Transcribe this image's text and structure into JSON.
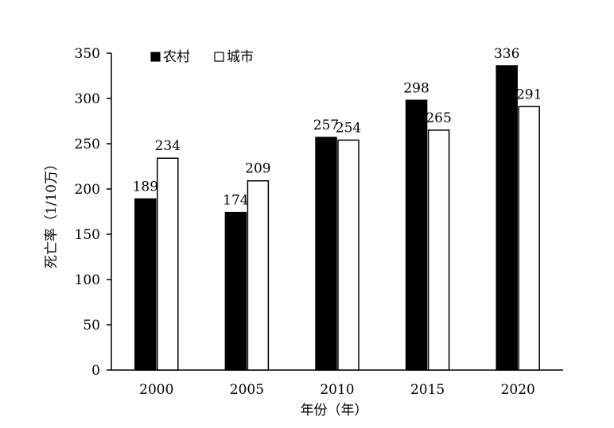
{
  "chart_data": {
    "type": "bar",
    "categories": [
      "2000",
      "2005",
      "2010",
      "2015",
      "2020"
    ],
    "series": [
      {
        "name": "农村",
        "values": [
          189,
          174,
          257,
          298,
          336
        ],
        "color": "#000000"
      },
      {
        "name": "城市",
        "values": [
          234,
          209,
          254,
          265,
          291
        ],
        "color": "#ffffff"
      }
    ],
    "xlabel": "年份（年）",
    "ylabel": "死亡率（1/10万）",
    "ylim": [
      0,
      350
    ],
    "yticks": [
      0,
      50,
      100,
      150,
      200,
      250,
      300,
      350
    ],
    "grid": false,
    "legend_position": "top-left"
  }
}
